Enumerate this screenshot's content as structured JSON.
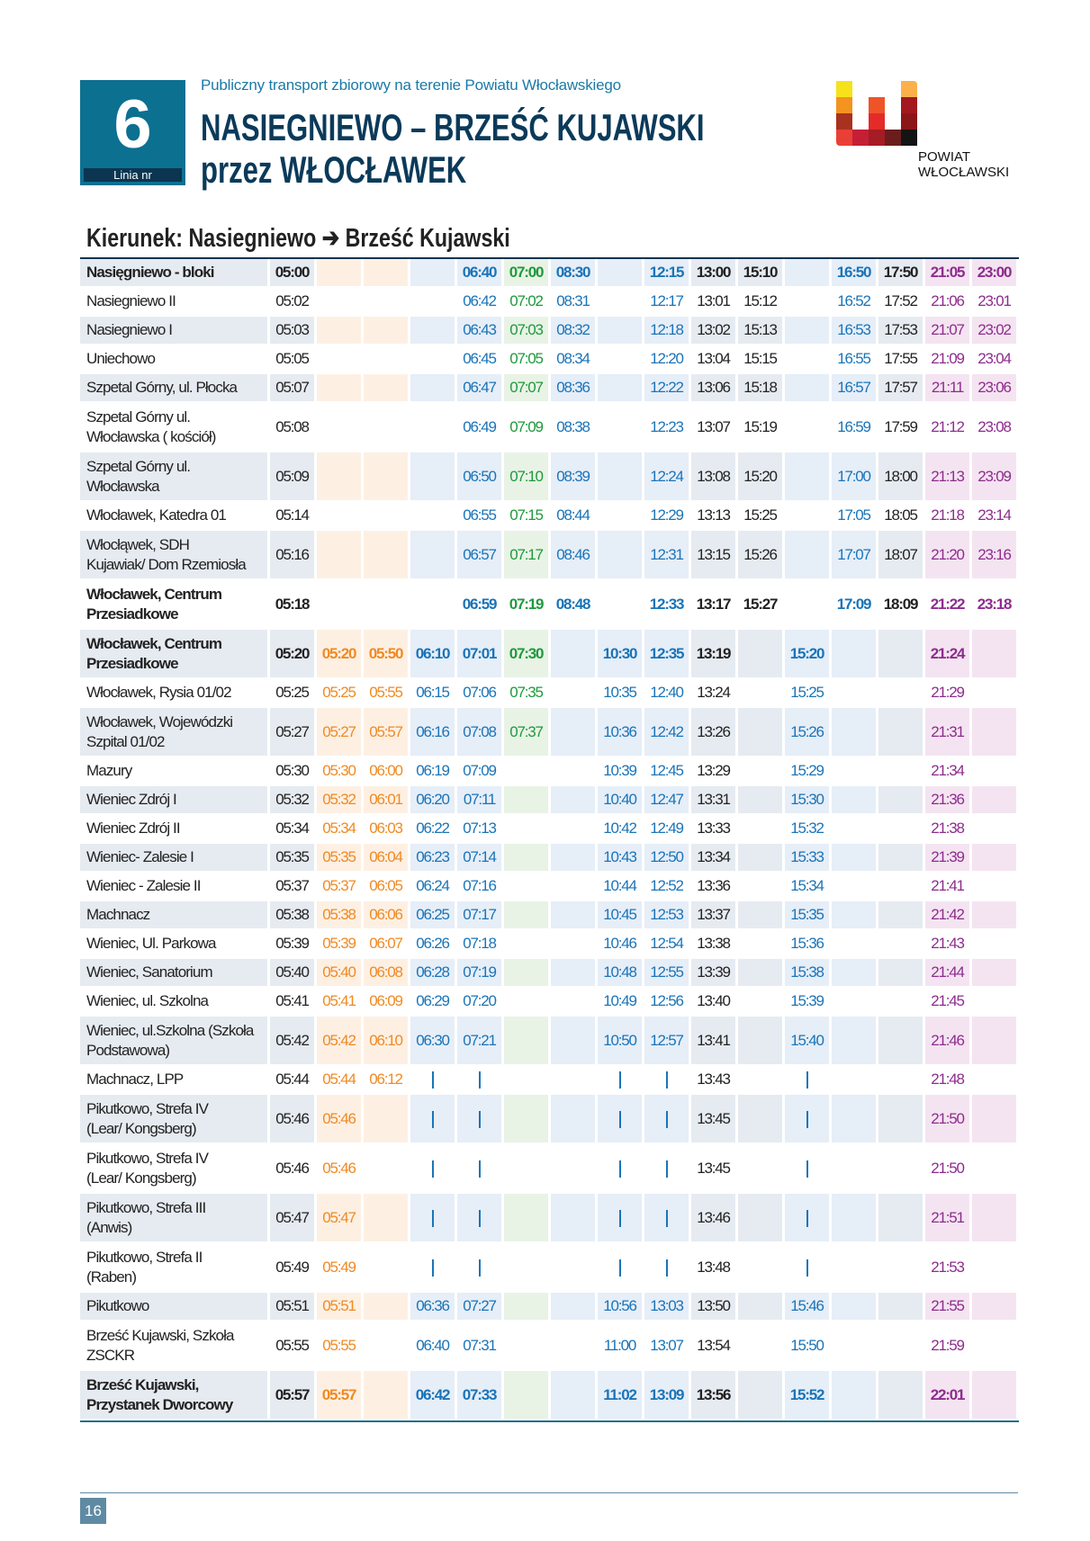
{
  "header": {
    "line_number": "6",
    "line_label": "Linia nr",
    "subtitle": "Publiczny transport zbiorowy na terenie Powiatu Włocławskiego",
    "title_line1": "NASIEGNIEWO – BRZEŚĆ KUJAWSKI",
    "title_line2": "przez WŁOCŁAWEK",
    "logo_text_line1": "POWIAT",
    "logo_text_line2": "WŁOCŁAWSKI"
  },
  "direction": "Kierunek: Nasiegniewo ➔ Brześć Kujawski",
  "columns": [
    {
      "color": "#222222",
      "bg": "#e6ebf1"
    },
    {
      "color": "#f08a24",
      "bg": "#fdf0e3"
    },
    {
      "color": "#f08a24",
      "bg": "#fdf0e3"
    },
    {
      "color": "#1a74b8",
      "bg": "#e6eef8"
    },
    {
      "color": "#1a74b8",
      "bg": "#e6eef8"
    },
    {
      "color": "#1e9a3c",
      "bg": "#e8f3e6"
    },
    {
      "color": "#1a74b8",
      "bg": "#e6eef8"
    },
    {
      "color": "#1a74b8",
      "bg": "#e6eef8"
    },
    {
      "color": "#1a74b8",
      "bg": "#e6eef8"
    },
    {
      "color": "#222222",
      "bg": "#e6ebf1"
    },
    {
      "color": "#222222",
      "bg": "#e6ebf1"
    },
    {
      "color": "#1a74b8",
      "bg": "#e6eef8"
    },
    {
      "color": "#1a74b8",
      "bg": "#e6eef8"
    },
    {
      "color": "#222222",
      "bg": "#e6ebf1"
    },
    {
      "color": "#8e2c8e",
      "bg": "#f4e4f1"
    },
    {
      "color": "#8e2c8e",
      "bg": "#f4e4f1"
    }
  ],
  "name_bg": "#e6ebf1",
  "rows": [
    {
      "stop": "Nasięgniewo - bloki",
      "bold": true,
      "times": [
        "05:00",
        "",
        "",
        "",
        "06:40",
        "07:00",
        "08:30",
        "",
        "12:15",
        "13:00",
        "15:10",
        "",
        "16:50",
        "17:50",
        "21:05",
        "23:00"
      ]
    },
    {
      "stop": "Nasiegniewo II",
      "times": [
        "05:02",
        "",
        "",
        "",
        "06:42",
        "07:02",
        "08:31",
        "",
        "12:17",
        "13:01",
        "15:12",
        "",
        "16:52",
        "17:52",
        "21:06",
        "23:01"
      ]
    },
    {
      "stop": "Nasiegniewo I",
      "times": [
        "05:03",
        "",
        "",
        "",
        "06:43",
        "07:03",
        "08:32",
        "",
        "12:18",
        "13:02",
        "15:13",
        "",
        "16:53",
        "17:53",
        "21:07",
        "23:02"
      ]
    },
    {
      "stop": "Uniechowo",
      "times": [
        "05:05",
        "",
        "",
        "",
        "06:45",
        "07:05",
        "08:34",
        "",
        "12:20",
        "13:04",
        "15:15",
        "",
        "16:55",
        "17:55",
        "21:09",
        "23:04"
      ]
    },
    {
      "stop": "Szpetal Górny, ul. Płocka",
      "times": [
        "05:07",
        "",
        "",
        "",
        "06:47",
        "07:07",
        "08:36",
        "",
        "12:22",
        "13:06",
        "15:18",
        "",
        "16:57",
        "17:57",
        "21:11",
        "23:06"
      ]
    },
    {
      "stop": "Szpetal Górny ul.\nWłocławska ( kościół)",
      "times": [
        "05:08",
        "",
        "",
        "",
        "06:49",
        "07:09",
        "08:38",
        "",
        "12:23",
        "13:07",
        "15:19",
        "",
        "16:59",
        "17:59",
        "21:12",
        "23:08"
      ]
    },
    {
      "stop": "Szpetal Górny ul.\nWłocławska",
      "times": [
        "05:09",
        "",
        "",
        "",
        "06:50",
        "07:10",
        "08:39",
        "",
        "12:24",
        "13:08",
        "15:20",
        "",
        "17:00",
        "18:00",
        "21:13",
        "23:09"
      ]
    },
    {
      "stop": "Włocławek, Katedra 01",
      "times": [
        "05:14",
        "",
        "",
        "",
        "06:55",
        "07:15",
        "08:44",
        "",
        "12:29",
        "13:13",
        "15:25",
        "",
        "17:05",
        "18:05",
        "21:18",
        "23:14"
      ]
    },
    {
      "stop": "Włocłąwek, SDH\nKujawiak/ Dom Rzemiosła",
      "times": [
        "05:16",
        "",
        "",
        "",
        "06:57",
        "07:17",
        "08:46",
        "",
        "12:31",
        "13:15",
        "15:26",
        "",
        "17:07",
        "18:07",
        "21:20",
        "23:16"
      ]
    },
    {
      "stop": "Włocławek, Centrum\nPrzesiadkowe",
      "bold": true,
      "times": [
        "05:18",
        "",
        "",
        "",
        "06:59",
        "07:19",
        "08:48",
        "",
        "12:33",
        "13:17",
        "15:27",
        "",
        "17:09",
        "18:09",
        "21:22",
        "23:18"
      ]
    },
    {
      "stop": "Włocławek, Centrum\nPrzesiadkowe",
      "bold": true,
      "times": [
        "05:20",
        "05:20",
        "05:50",
        "06:10",
        "07:01",
        "07:30",
        "",
        "10:30",
        "12:35",
        "13:19",
        "",
        "15:20",
        "",
        "",
        "21:24",
        ""
      ]
    },
    {
      "stop": "Włocławek, Rysia 01/02",
      "times": [
        "05:25",
        "05:25",
        "05:55",
        "06:15",
        "07:06",
        "07:35",
        "",
        "10:35",
        "12:40",
        "13:24",
        "",
        "15:25",
        "",
        "",
        "21:29",
        ""
      ]
    },
    {
      "stop": "Włocławek, Wojewódzki\nSzpital 01/02",
      "times": [
        "05:27",
        "05:27",
        "05:57",
        "06:16",
        "07:08",
        "07:37",
        "",
        "10:36",
        "12:42",
        "13:26",
        "",
        "15:26",
        "",
        "",
        "21:31",
        ""
      ]
    },
    {
      "stop": "Mazury",
      "times": [
        "05:30",
        "05:30",
        "06:00",
        "06:19",
        "07:09",
        "",
        "",
        "10:39",
        "12:45",
        "13:29",
        "",
        "15:29",
        "",
        "",
        "21:34",
        ""
      ]
    },
    {
      "stop": "Wieniec Zdrój I",
      "times": [
        "05:32",
        "05:32",
        "06:01",
        "06:20",
        "07:11",
        "",
        "",
        "10:40",
        "12:47",
        "13:31",
        "",
        "15:30",
        "",
        "",
        "21:36",
        ""
      ]
    },
    {
      "stop": "Wieniec Zdrój II",
      "times": [
        "05:34",
        "05:34",
        "06:03",
        "06:22",
        "07:13",
        "",
        "",
        "10:42",
        "12:49",
        "13:33",
        "",
        "15:32",
        "",
        "",
        "21:38",
        ""
      ]
    },
    {
      "stop": "Wieniec- Zalesie I",
      "times": [
        "05:35",
        "05:35",
        "06:04",
        "06:23",
        "07:14",
        "",
        "",
        "10:43",
        "12:50",
        "13:34",
        "",
        "15:33",
        "",
        "",
        "21:39",
        ""
      ]
    },
    {
      "stop": "Wieniec - Zalesie II",
      "times": [
        "05:37",
        "05:37",
        "06:05",
        "06:24",
        "07:16",
        "",
        "",
        "10:44",
        "12:52",
        "13:36",
        "",
        "15:34",
        "",
        "",
        "21:41",
        ""
      ]
    },
    {
      "stop": "Machnacz",
      "times": [
        "05:38",
        "05:38",
        "06:06",
        "06:25",
        "07:17",
        "",
        "",
        "10:45",
        "12:53",
        "13:37",
        "",
        "15:35",
        "",
        "",
        "21:42",
        ""
      ]
    },
    {
      "stop": "Wieniec, Ul. Parkowa",
      "times": [
        "05:39",
        "05:39",
        "06:07",
        "06:26",
        "07:18",
        "",
        "",
        "10:46",
        "12:54",
        "13:38",
        "",
        "15:36",
        "",
        "",
        "21:43",
        ""
      ]
    },
    {
      "stop": "Wieniec, Sanatorium",
      "times": [
        "05:40",
        "05:40",
        "06:08",
        "06:28",
        "07:19",
        "",
        "",
        "10:48",
        "12:55",
        "13:39",
        "",
        "15:38",
        "",
        "",
        "21:44",
        ""
      ]
    },
    {
      "stop": "Wieniec, ul. Szkolna",
      "times": [
        "05:41",
        "05:41",
        "06:09",
        "06:29",
        "07:20",
        "",
        "",
        "10:49",
        "12:56",
        "13:40",
        "",
        "15:39",
        "",
        "",
        "21:45",
        ""
      ]
    },
    {
      "stop": "Wieniec, ul.Szkolna (Szkoła\nPodstawowa)",
      "times": [
        "05:42",
        "05:42",
        "06:10",
        "06:30",
        "07:21",
        "",
        "",
        "10:50",
        "12:57",
        "13:41",
        "",
        "15:40",
        "",
        "",
        "21:46",
        ""
      ]
    },
    {
      "stop": "Machnacz, LPP",
      "times": [
        "05:44",
        "05:44",
        "06:12",
        "|",
        "|",
        "",
        "",
        "|",
        "|",
        "13:43",
        "",
        "|",
        "",
        "",
        "21:48",
        ""
      ]
    },
    {
      "stop": "Pikutkowo, Strefa IV\n(Lear/ Kongsberg)",
      "times": [
        "05:46",
        "05:46",
        "",
        "|",
        "|",
        "",
        "",
        "|",
        "|",
        "13:45",
        "",
        "|",
        "",
        "",
        "21:50",
        ""
      ]
    },
    {
      "stop": "Pikutkowo, Strefa IV\n(Lear/ Kongsberg)",
      "times": [
        "05:46",
        "05:46",
        "",
        "|",
        "|",
        "",
        "",
        "|",
        "|",
        "13:45",
        "",
        "|",
        "",
        "",
        "21:50",
        ""
      ]
    },
    {
      "stop": "Pikutkowo, Strefa III\n(Anwis)",
      "times": [
        "05:47",
        "05:47",
        "",
        "|",
        "|",
        "",
        "",
        "|",
        "|",
        "13:46",
        "",
        "|",
        "",
        "",
        "21:51",
        ""
      ]
    },
    {
      "stop": "Pikutkowo, Strefa II\n(Raben)",
      "times": [
        "05:49",
        "05:49",
        "",
        "|",
        "|",
        "",
        "",
        "|",
        "|",
        "13:48",
        "",
        "|",
        "",
        "",
        "21:53",
        ""
      ]
    },
    {
      "stop": "Pikutkowo",
      "times": [
        "05:51",
        "05:51",
        "",
        "06:36",
        "07:27",
        "",
        "",
        "10:56",
        "13:03",
        "13:50",
        "",
        "15:46",
        "",
        "",
        "21:55",
        ""
      ]
    },
    {
      "stop": "Brześć Kujawski, Szkoła\nZSCKR",
      "times": [
        "05:55",
        "05:55",
        "",
        "06:40",
        "07:31",
        "",
        "",
        "11:00",
        "13:07",
        "13:54",
        "",
        "15:50",
        "",
        "",
        "21:59",
        ""
      ]
    },
    {
      "stop": "Brześć Kujawski,\nPrzystanek Dworcowy",
      "bold": true,
      "times": [
        "05:57",
        "05:57",
        "",
        "06:42",
        "07:33",
        "",
        "",
        "11:02",
        "13:09",
        "13:56",
        "",
        "15:52",
        "",
        "",
        "22:01",
        ""
      ]
    }
  ],
  "page_number": "16"
}
